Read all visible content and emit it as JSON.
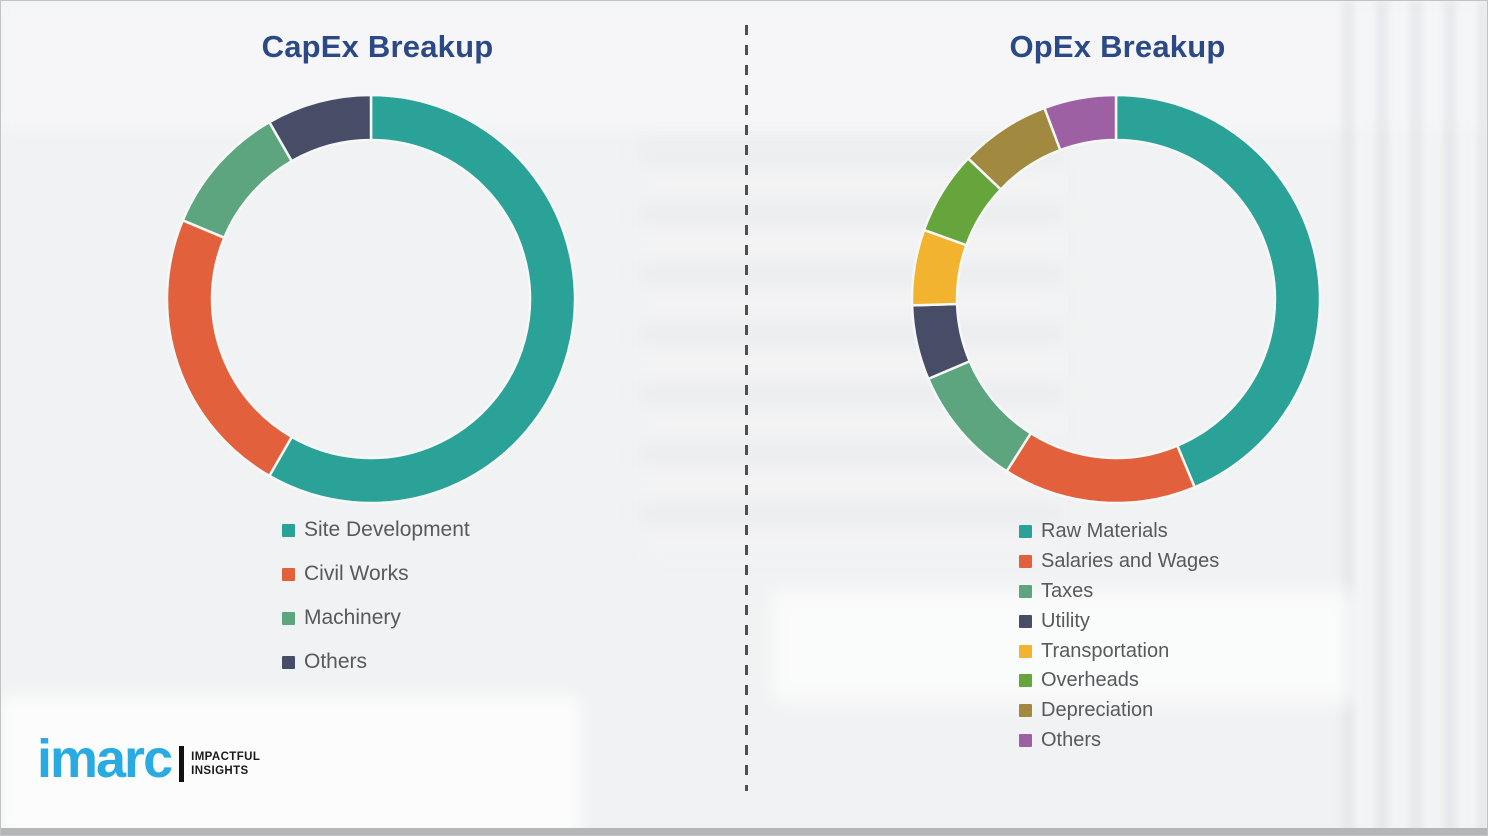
{
  "style": {
    "title_color": "#2b4a85",
    "legend_text_color": "#58595b",
    "background": "#f1f2f3",
    "divider_color": "#4f4f4f",
    "bottom_strip_color": "#b5b6b7",
    "slice_gap_color": "#f6f7f7",
    "brand_color": "#29abe2",
    "tagline_color": "#1a1a1a"
  },
  "chart_data": [
    {
      "type": "pie",
      "subtype": "donut",
      "title": "CapEx Breakup",
      "labels": [
        "Site Development",
        "Civil Works",
        "Machinery",
        "Others"
      ],
      "values": [
        58.3,
        23.0,
        10.4,
        8.3
      ],
      "values_are_estimated_percent": true,
      "colors": [
        "#2aa298",
        "#e2603c",
        "#5ca57f",
        "#474d66"
      ],
      "start_angle_deg": 0,
      "direction": "clockwise",
      "inner_radius_ratio": 0.78,
      "legend_position": "below",
      "data_labels_shown": false
    },
    {
      "type": "pie",
      "subtype": "donut",
      "title": "OpEx Breakup",
      "labels": [
        "Raw Materials",
        "Salaries and Wages",
        "Taxes",
        "Utility",
        "Transportation",
        "Overheads",
        "Depreciation",
        "Others"
      ],
      "values": [
        43.7,
        15.3,
        9.6,
        5.9,
        6.0,
        6.6,
        7.2,
        5.7
      ],
      "values_are_estimated_percent": true,
      "colors": [
        "#2aa298",
        "#e2603c",
        "#5ca57f",
        "#474d66",
        "#f2b32f",
        "#66a53c",
        "#a18a3f",
        "#9d61a3"
      ],
      "start_angle_deg": 0,
      "direction": "clockwise",
      "inner_radius_ratio": 0.78,
      "legend_position": "below",
      "data_labels_shown": false
    }
  ],
  "logo": {
    "brand": "imarc",
    "tagline_top": "IMPACTFUL",
    "tagline_bottom": "INSIGHTS"
  }
}
